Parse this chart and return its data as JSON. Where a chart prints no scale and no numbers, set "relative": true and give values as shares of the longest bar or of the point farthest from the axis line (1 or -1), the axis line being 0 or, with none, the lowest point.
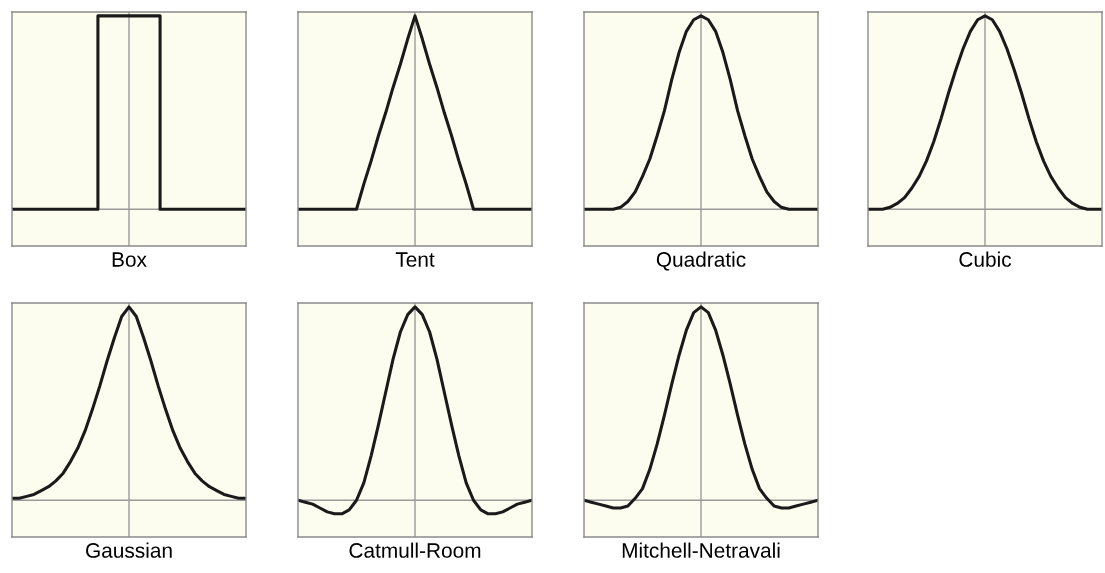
{
  "chart_data": [
    {
      "type": "step",
      "relative": true,
      "xlabel": "Box",
      "color": "#1a1a1a",
      "tick_labels": false,
      "categories": [
        null,
        null,
        null,
        null,
        null,
        null,
        null,
        null,
        null,
        null,
        null,
        null,
        null,
        null,
        null,
        null,
        null,
        null,
        null,
        null,
        null,
        null,
        null,
        null,
        null,
        null,
        null,
        null,
        null,
        null,
        null,
        null,
        null,
        null,
        null,
        null,
        null,
        null,
        null,
        null,
        null,
        null,
        null,
        null,
        null,
        null,
        null,
        null,
        null,
        null,
        null,
        null,
        null,
        null,
        null,
        null,
        null,
        null,
        null,
        null,
        null,
        null,
        null,
        null,
        null
      ],
      "values": [
        0,
        0,
        0,
        0,
        0,
        0,
        0,
        0,
        0,
        0,
        0,
        0,
        0,
        0,
        0,
        0,
        0,
        0,
        0,
        0,
        0,
        0,
        0,
        0,
        1,
        1,
        1,
        1,
        1,
        1,
        1,
        1,
        1,
        1,
        1,
        1,
        1,
        1,
        1,
        1,
        1,
        0,
        0,
        0,
        0,
        0,
        0,
        0,
        0,
        0,
        0,
        0,
        0,
        0,
        0,
        0,
        0,
        0,
        0,
        0,
        0,
        0,
        0,
        0,
        0
      ]
    },
    {
      "type": "line",
      "relative": true,
      "xlabel": "Tent",
      "color": "#1a1a1a",
      "tick_labels": false,
      "categories": [
        null,
        null,
        null,
        null,
        null,
        null,
        null,
        null,
        null,
        null,
        null,
        null,
        null,
        null,
        null,
        null,
        null,
        null,
        null,
        null,
        null,
        null,
        null,
        null,
        null,
        null,
        null,
        null,
        null,
        null,
        null,
        null,
        null
      ],
      "values": [
        0,
        0,
        0,
        0,
        0,
        0,
        0,
        0,
        0,
        0.13,
        0.25,
        0.38,
        0.5,
        0.63,
        0.75,
        0.88,
        1,
        0.88,
        0.75,
        0.63,
        0.5,
        0.38,
        0.25,
        0.13,
        0,
        0,
        0,
        0,
        0,
        0,
        0,
        0,
        0
      ]
    },
    {
      "type": "line",
      "relative": true,
      "xlabel": "Quadratic",
      "color": "#1a1a1a",
      "tick_labels": false,
      "categories": [
        null,
        null,
        null,
        null,
        null,
        null,
        null,
        null,
        null,
        null,
        null,
        null,
        null,
        null,
        null,
        null,
        null,
        null,
        null,
        null,
        null,
        null,
        null,
        null,
        null,
        null,
        null,
        null,
        null,
        null,
        null,
        null,
        null
      ],
      "values": [
        0,
        0,
        0,
        0,
        0,
        0.01,
        0.04,
        0.09,
        0.17,
        0.26,
        0.38,
        0.51,
        0.67,
        0.81,
        0.92,
        0.98,
        1,
        0.98,
        0.92,
        0.81,
        0.67,
        0.51,
        0.38,
        0.26,
        0.17,
        0.09,
        0.04,
        0.01,
        0,
        0,
        0,
        0,
        0
      ]
    },
    {
      "type": "line",
      "relative": true,
      "xlabel": "Cubic",
      "color": "#1a1a1a",
      "tick_labels": false,
      "categories": [
        null,
        null,
        null,
        null,
        null,
        null,
        null,
        null,
        null,
        null,
        null,
        null,
        null,
        null,
        null,
        null,
        null,
        null,
        null,
        null,
        null,
        null,
        null,
        null,
        null,
        null,
        null,
        null,
        null,
        null,
        null,
        null,
        null
      ],
      "values": [
        0,
        0,
        0,
        0.01,
        0.03,
        0.06,
        0.11,
        0.17,
        0.25,
        0.35,
        0.47,
        0.6,
        0.72,
        0.83,
        0.92,
        0.98,
        1,
        0.98,
        0.92,
        0.83,
        0.72,
        0.6,
        0.47,
        0.35,
        0.25,
        0.17,
        0.11,
        0.06,
        0.03,
        0.01,
        0,
        0,
        0
      ]
    },
    {
      "type": "line",
      "relative": true,
      "xlabel": "Gaussian",
      "color": "#1a1a1a",
      "tick_labels": false,
      "categories": [
        null,
        null,
        null,
        null,
        null,
        null,
        null,
        null,
        null,
        null,
        null,
        null,
        null,
        null,
        null,
        null,
        null,
        null,
        null,
        null,
        null,
        null,
        null,
        null,
        null,
        null,
        null,
        null,
        null,
        null,
        null,
        null,
        null
      ],
      "values": [
        0.01,
        0.01,
        0.02,
        0.03,
        0.05,
        0.07,
        0.1,
        0.14,
        0.2,
        0.27,
        0.36,
        0.47,
        0.59,
        0.72,
        0.84,
        0.95,
        1,
        0.95,
        0.84,
        0.72,
        0.59,
        0.47,
        0.36,
        0.27,
        0.2,
        0.14,
        0.1,
        0.07,
        0.05,
        0.03,
        0.02,
        0.01,
        0.01
      ]
    },
    {
      "type": "line",
      "relative": true,
      "xlabel": "Catmull-Room",
      "color": "#1a1a1a",
      "tick_labels": false,
      "categories": [
        null,
        null,
        null,
        null,
        null,
        null,
        null,
        null,
        null,
        null,
        null,
        null,
        null,
        null,
        null,
        null,
        null,
        null,
        null,
        null,
        null,
        null,
        null,
        null,
        null,
        null,
        null,
        null,
        null,
        null,
        null,
        null,
        null
      ],
      "values": [
        0,
        -0.01,
        -0.02,
        -0.04,
        -0.06,
        -0.07,
        -0.07,
        -0.05,
        0,
        0.09,
        0.23,
        0.39,
        0.56,
        0.73,
        0.87,
        0.96,
        1,
        0.96,
        0.87,
        0.73,
        0.56,
        0.39,
        0.23,
        0.09,
        0,
        -0.05,
        -0.07,
        -0.07,
        -0.06,
        -0.04,
        -0.02,
        -0.01,
        0
      ]
    },
    {
      "type": "line",
      "relative": true,
      "xlabel": "Mitchell-Netravali",
      "color": "#1a1a1a",
      "tick_labels": false,
      "categories": [
        null,
        null,
        null,
        null,
        null,
        null,
        null,
        null,
        null,
        null,
        null,
        null,
        null,
        null,
        null,
        null,
        null,
        null,
        null,
        null,
        null,
        null,
        null,
        null,
        null,
        null,
        null,
        null,
        null,
        null,
        null,
        null,
        null
      ],
      "values": [
        0,
        -0.01,
        -0.02,
        -0.03,
        -0.04,
        -0.04,
        -0.03,
        0.01,
        0.06,
        0.16,
        0.29,
        0.44,
        0.6,
        0.75,
        0.88,
        0.97,
        1,
        0.97,
        0.88,
        0.75,
        0.6,
        0.44,
        0.29,
        0.16,
        0.06,
        0.01,
        -0.03,
        -0.04,
        -0.04,
        -0.03,
        -0.02,
        -0.01,
        0
      ]
    }
  ]
}
